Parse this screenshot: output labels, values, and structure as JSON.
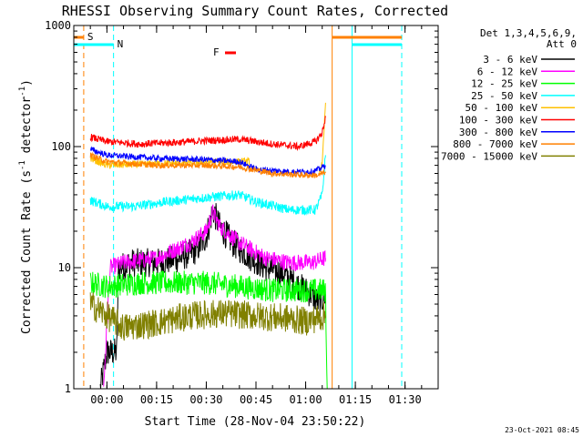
{
  "chart_data": {
    "type": "line",
    "title": "RHESSI Observing Summary Count Rates, Corrected",
    "xlabel": "Start Time (28-Nov-04 23:50:22)",
    "ylabel_main": "Corrected Count Rate (s",
    "ylabel_sup1": "-1",
    "ylabel_mid": " detector",
    "ylabel_sup2": "-1",
    "ylabel_end": ")",
    "yscale": "log",
    "xlim_minutes": [
      -10,
      100
    ],
    "ylim": [
      1,
      1000
    ],
    "y_ticks": [
      {
        "value": 1,
        "label": "1"
      },
      {
        "value": 10,
        "label": "10"
      },
      {
        "value": 100,
        "label": "100"
      },
      {
        "value": 1000,
        "label": "1000"
      }
    ],
    "x_ticks": [
      {
        "minutes": 0,
        "label": "00:00"
      },
      {
        "minutes": 15,
        "label": "00:15"
      },
      {
        "minutes": 30,
        "label": "00:30"
      },
      {
        "minutes": 45,
        "label": "00:45"
      },
      {
        "minutes": 60,
        "label": "01:00"
      },
      {
        "minutes": 75,
        "label": "01:15"
      },
      {
        "minutes": 90,
        "label": "01:30"
      }
    ],
    "legend_header": [
      "Det 1,3,4,5,6,9,",
      "Att 0"
    ],
    "legend_position": "right",
    "grid": false,
    "series": [
      {
        "name": "3 - 6 keV",
        "color": "#000000",
        "points": [
          [
            -2,
            1
          ],
          [
            0,
            2
          ],
          [
            3,
            2
          ],
          [
            3.5,
            10
          ],
          [
            8,
            11
          ],
          [
            15,
            11
          ],
          [
            22,
            12
          ],
          [
            27,
            14
          ],
          [
            30,
            18
          ],
          [
            32,
            30
          ],
          [
            34,
            22
          ],
          [
            38,
            16
          ],
          [
            42,
            13
          ],
          [
            48,
            10
          ],
          [
            53,
            9
          ],
          [
            58,
            7
          ],
          [
            62,
            6
          ],
          [
            64,
            5
          ],
          [
            66,
            6
          ]
        ],
        "noise": 0.12
      },
      {
        "name": "6 - 12 keV",
        "color": "#ff00ff",
        "points": [
          [
            -1,
            1
          ],
          [
            0.5,
            6
          ],
          [
            1,
            10
          ],
          [
            5,
            11
          ],
          [
            15,
            12
          ],
          [
            25,
            16
          ],
          [
            30,
            20
          ],
          [
            32,
            29
          ],
          [
            34,
            22
          ],
          [
            40,
            16
          ],
          [
            48,
            12
          ],
          [
            55,
            11
          ],
          [
            62,
            11
          ],
          [
            66,
            12
          ]
        ],
        "noise": 0.07
      },
      {
        "name": "12 - 25 keV",
        "color": "#00ff00",
        "points": [
          [
            -5,
            7.5
          ],
          [
            0,
            7
          ],
          [
            10,
            7.5
          ],
          [
            20,
            7.5
          ],
          [
            30,
            7.5
          ],
          [
            40,
            7
          ],
          [
            50,
            6.5
          ],
          [
            60,
            6.5
          ],
          [
            66,
            6.5
          ],
          [
            66.5,
            1
          ]
        ],
        "noise": 0.1
      },
      {
        "name": "25 - 50 keV",
        "color": "#00ffff",
        "points": [
          [
            -5,
            36
          ],
          [
            0,
            32
          ],
          [
            8,
            32
          ],
          [
            18,
            35
          ],
          [
            30,
            38
          ],
          [
            40,
            40
          ],
          [
            45,
            35
          ],
          [
            55,
            30
          ],
          [
            63,
            30
          ],
          [
            65,
            40
          ],
          [
            66,
            85
          ]
        ],
        "noise": 0.04
      },
      {
        "name": "50 - 100 keV",
        "color": "#ffc000",
        "points": [
          [
            -5,
            80
          ],
          [
            0,
            70
          ],
          [
            15,
            72
          ],
          [
            30,
            75
          ],
          [
            43,
            75
          ],
          [
            43.5,
            null
          ],
          [
            64,
            62
          ],
          [
            65,
            70
          ],
          [
            66,
            230
          ]
        ],
        "noise": 0.03
      },
      {
        "name": "100 - 300 keV",
        "color": "#ff0000",
        "points": [
          [
            -5,
            120
          ],
          [
            0,
            110
          ],
          [
            10,
            105
          ],
          [
            20,
            108
          ],
          [
            30,
            112
          ],
          [
            40,
            115
          ],
          [
            50,
            105
          ],
          [
            58,
            100
          ],
          [
            63,
            110
          ],
          [
            65,
            130
          ],
          [
            66,
            175
          ]
        ],
        "noise": 0.03
      },
      {
        "name": "300 - 800 keV",
        "color": "#0000ff",
        "points": [
          [
            -5,
            95
          ],
          [
            0,
            85
          ],
          [
            15,
            80
          ],
          [
            30,
            78
          ],
          [
            40,
            75
          ],
          [
            45,
            65
          ],
          [
            55,
            62
          ],
          [
            62,
            62
          ],
          [
            64,
            65
          ],
          [
            66,
            70
          ]
        ],
        "noise": 0.025
      },
      {
        "name": "800 - 7000 keV",
        "color": "#ff8000",
        "points": [
          [
            -5,
            85
          ],
          [
            0,
            75
          ],
          [
            15,
            70
          ],
          [
            30,
            70
          ],
          [
            40,
            68
          ],
          [
            50,
            60
          ],
          [
            60,
            58
          ],
          [
            64,
            58
          ],
          [
            66,
            62
          ]
        ],
        "noise": 0.025
      },
      {
        "name": "7000 - 15000 keV",
        "color": "#808000",
        "points": [
          [
            -5,
            5
          ],
          [
            0,
            4
          ],
          [
            5,
            3.2
          ],
          [
            15,
            3.5
          ],
          [
            25,
            4
          ],
          [
            35,
            4.2
          ],
          [
            45,
            4
          ],
          [
            55,
            3.8
          ],
          [
            60,
            3.6
          ],
          [
            66,
            4
          ]
        ],
        "noise": 0.12
      }
    ],
    "annotations": {
      "s_label": "S",
      "n_label": "N",
      "f_label": "F",
      "s_line_minutes": -7,
      "n_line_minutes": 2,
      "orange_lines_minutes": [
        68,
        89
      ],
      "cyan_lines_minutes": [
        74,
        89
      ],
      "s_bar_color": "#ff8000",
      "n_bar_color": "#00ffff",
      "f_bar_color": "#ff0000",
      "orange_top_band_minutes": [
        68,
        89
      ],
      "cyan_top_band_minutes": [
        74,
        89
      ]
    },
    "timestamp": "23-Oct-2021 08:45"
  }
}
